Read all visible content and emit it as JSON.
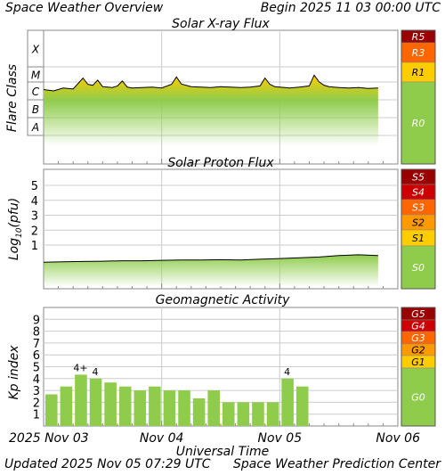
{
  "header": {
    "title": "Space Weather Overview",
    "begin": "Begin 2025 11 03 00:00 UTC"
  },
  "footer": {
    "updated": "Updated 2025 Nov 05 07:29 UTC",
    "credit": "Space Weather Prediction Center"
  },
  "colors": {
    "green": "#8fcc4c",
    "yellow": "#ffcc00",
    "gold": "#ff9900",
    "orange": "#ff6600",
    "red": "#cc0000",
    "darkred": "#990000",
    "grid": "#cccccc"
  },
  "chart_data": [
    {
      "type": "area",
      "title": "Solar X-ray Flux",
      "ylabel": "Flare Class",
      "yscale": "log",
      "y_class_labels": [
        "X",
        "M",
        "C",
        "B",
        "A"
      ],
      "y_class_values": [
        0.0001,
        1e-05,
        1e-06,
        1e-07,
        1e-08
      ],
      "x_unit": "hours since 2025-11-03 00:00 UTC",
      "xlim": [
        0,
        72
      ],
      "x": [
        0,
        2,
        4,
        6,
        8,
        9,
        10,
        11,
        12,
        14,
        15,
        16,
        17,
        18,
        20,
        22,
        24,
        26,
        27,
        28,
        30,
        32,
        34,
        36,
        38,
        40,
        42,
        44,
        45,
        46,
        47,
        48,
        50,
        52,
        54,
        55,
        56,
        57,
        58,
        60,
        62,
        64,
        66,
        68
      ],
      "y": [
        1.2e-06,
        1e-06,
        1.5e-06,
        1.3e-06,
        6e-06,
        2.5e-06,
        2.2e-06,
        4.5e-06,
        1.8e-06,
        1.6e-06,
        2e-06,
        4e-06,
        1.7e-06,
        1.5e-06,
        1.6e-06,
        1.7e-06,
        1.5e-06,
        2.5e-06,
        7e-06,
        2.6e-06,
        1.8e-06,
        1.7e-06,
        1.6e-06,
        1.8e-06,
        1.7e-06,
        1.6e-06,
        1.7e-06,
        2e-06,
        6e-06,
        2.5e-06,
        1.8e-06,
        1.7e-06,
        1.5e-06,
        1.7e-06,
        2e-06,
        9e-06,
        3.5e-06,
        2.2e-06,
        1.8e-06,
        1.6e-06,
        1.5e-06,
        1.6e-06,
        1.4e-06,
        1.5e-06
      ],
      "scale": [
        {
          "label": "R5",
          "color": "#990000"
        },
        {
          "label": "R3",
          "color": "#ff6600"
        },
        {
          "label": "R1",
          "color": "#ffcc00"
        },
        {
          "label": "R0",
          "color": "#8fcc4c"
        }
      ],
      "grid": true
    },
    {
      "type": "area",
      "title": "Solar Proton Flux",
      "ylabel": "Log10(pfu)",
      "ylabel_main": "Log",
      "ylabel_sub": "10",
      "ylabel_tail": "(pfu)",
      "yscale": "log",
      "ylim": [
        -1.2,
        6
      ],
      "ytick_labels": [
        "5",
        "4",
        "3",
        "2",
        "1"
      ],
      "x_unit": "hours since 2025-11-03 00:00 UTC",
      "xlim": [
        0,
        72
      ],
      "x": [
        0,
        4,
        8,
        12,
        16,
        20,
        24,
        28,
        32,
        36,
        40,
        44,
        48,
        52,
        56,
        60,
        64,
        68
      ],
      "y": [
        -0.15,
        -0.12,
        -0.1,
        -0.08,
        -0.05,
        -0.05,
        -0.02,
        0.0,
        0.0,
        0.02,
        0.0,
        0.05,
        0.1,
        0.15,
        0.2,
        0.3,
        0.35,
        0.3
      ],
      "scale": [
        {
          "label": "S5",
          "color": "#990000"
        },
        {
          "label": "S4",
          "color": "#cc0000"
        },
        {
          "label": "S3",
          "color": "#ff6600"
        },
        {
          "label": "S2",
          "color": "#ff9900"
        },
        {
          "label": "S1",
          "color": "#ffcc00"
        },
        {
          "label": "S0",
          "color": "#8fcc4c"
        }
      ],
      "grid": true
    },
    {
      "type": "bar",
      "title": "Geomagnetic Activity",
      "ylabel": "Kp index",
      "ylim": [
        0,
        10
      ],
      "ytick_labels": [
        "9",
        "8",
        "7",
        "6",
        "5",
        "4",
        "3",
        "2",
        "1"
      ],
      "x_unit": "3-hour intervals from 2025-11-03 00:00 UTC",
      "xlim": [
        0,
        24
      ],
      "values": [
        2.67,
        3.33,
        4.33,
        4.0,
        3.67,
        3.33,
        3.0,
        3.33,
        3.0,
        3.0,
        2.33,
        3.0,
        2.0,
        2.0,
        2.0,
        2.0,
        4.0,
        3.33
      ],
      "bar_labels": [
        {
          "index": 2,
          "text": "4+"
        },
        {
          "index": 3,
          "text": "4"
        },
        {
          "index": 16,
          "text": "4"
        }
      ],
      "scale": [
        {
          "label": "G5",
          "color": "#990000"
        },
        {
          "label": "G4",
          "color": "#cc0000"
        },
        {
          "label": "G3",
          "color": "#ff6600"
        },
        {
          "label": "G2",
          "color": "#ff9900"
        },
        {
          "label": "G1",
          "color": "#ffcc00"
        },
        {
          "label": "G0",
          "color": "#8fcc4c"
        }
      ],
      "grid": true
    }
  ],
  "xaxis": {
    "label": "Universal Time",
    "ticks": [
      {
        "hour": 0,
        "label": "2025 Nov 03"
      },
      {
        "hour": 24,
        "label": "Nov 04"
      },
      {
        "hour": 48,
        "label": "Nov 05"
      },
      {
        "hour": 72,
        "label": "Nov 06"
      }
    ]
  }
}
